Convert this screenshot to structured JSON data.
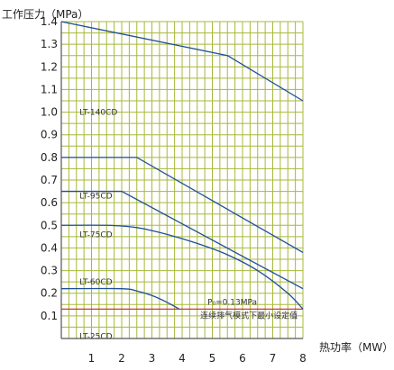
{
  "chart_data": {
    "type": "line",
    "title": "",
    "ylabel": "工作压力（MPa）",
    "xlabel": "热功率（MW）",
    "xlim": [
      0,
      8
    ],
    "ylim": [
      0,
      1.4
    ],
    "xticks": [
      1,
      2,
      3,
      4,
      5,
      6,
      7,
      8
    ],
    "yticks": [
      0.1,
      0.2,
      0.3,
      0.4,
      0.5,
      0.6,
      0.7,
      0.8,
      0.9,
      1.0,
      1.1,
      1.2,
      1.3,
      1.4
    ],
    "ytick_labels": [
      "0.1",
      "0.2",
      "0.3",
      "0.4",
      "0.5",
      "0.6",
      "0.7",
      "0.8",
      "0.9",
      "1.0",
      "1.1",
      "1.2",
      "1.3",
      "1.4"
    ],
    "grid": true,
    "series": [
      {
        "label_text": "LT-140CD",
        "label_at": [
          1.2,
          1.0
        ],
        "points": [
          [
            0,
            1.4
          ],
          [
            5.5,
            1.25
          ],
          [
            8,
            1.05
          ]
        ],
        "smooth": false
      },
      {
        "label_text": "LT-95CD",
        "label_at": [
          1.2,
          0.63
        ],
        "points": [
          [
            0,
            0.8
          ],
          [
            2.5,
            0.8
          ],
          [
            8,
            0.38
          ]
        ],
        "smooth": false
      },
      {
        "label_text": "LT-75CD",
        "label_at": [
          1.2,
          0.46
        ],
        "points": [
          [
            0,
            0.65
          ],
          [
            2.0,
            0.65
          ],
          [
            8,
            0.22
          ]
        ],
        "smooth": false
      },
      {
        "label_text": "LT-60CD",
        "label_at": [
          1.2,
          0.25
        ],
        "points": [
          [
            0,
            0.5
          ],
          [
            1.5,
            0.5
          ],
          [
            2.5,
            0.49
          ],
          [
            3.5,
            0.46
          ],
          [
            4.5,
            0.42
          ],
          [
            5.5,
            0.37
          ],
          [
            6.5,
            0.3
          ],
          [
            7.5,
            0.2
          ],
          [
            8,
            0.13
          ]
        ],
        "smooth": true
      },
      {
        "label_text": "LT-25CD",
        "label_at": [
          1.2,
          0.01
        ],
        "points": [
          [
            0,
            0.22
          ],
          [
            2.0,
            0.22
          ],
          [
            2.5,
            0.21
          ],
          [
            3.0,
            0.19
          ],
          [
            3.5,
            0.16
          ],
          [
            3.9,
            0.13
          ]
        ],
        "smooth": true
      }
    ],
    "reference_line": {
      "y": 0.13,
      "color": "#cc2222",
      "text_1": "P₀=0.13MPa",
      "text_2": "连续排气模式下最小设定值",
      "label_x": 4.6
    }
  },
  "colors": {
    "grid": "#a8b83a",
    "series": "#1f4e9b",
    "axis": "#555555"
  }
}
